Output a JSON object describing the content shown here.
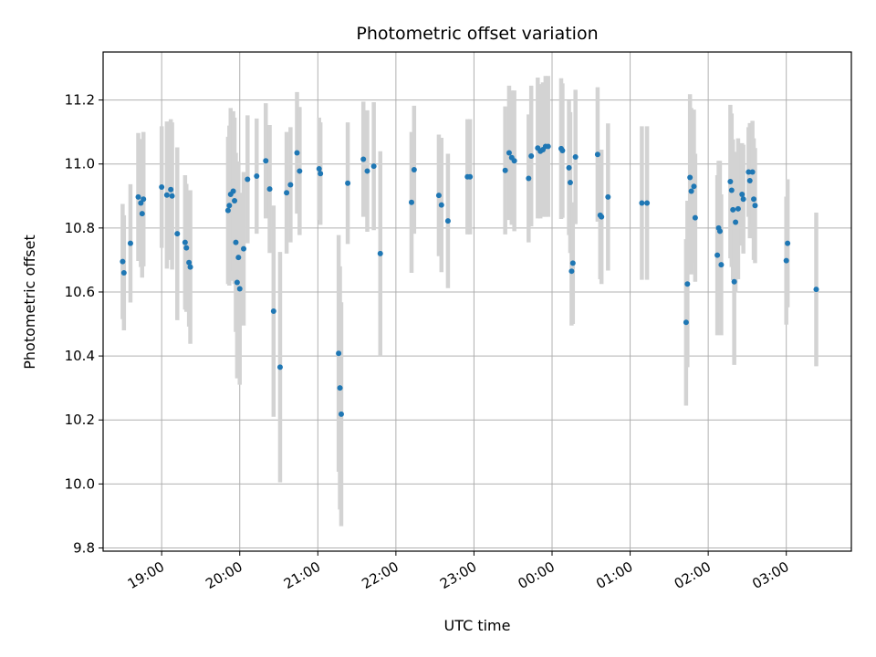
{
  "chart_data": {
    "type": "scatter",
    "title": "Photometric offset variation",
    "xlabel": "UTC time",
    "ylabel": "Photometric offset",
    "grid": true,
    "x_unit": "hours UTC",
    "xlim": [
      "18:15",
      "03:50"
    ],
    "ylim": [
      9.79,
      11.35
    ],
    "x_ticks": [
      "19:00",
      "20:00",
      "21:00",
      "22:00",
      "23:00",
      "00:00",
      "01:00",
      "02:00",
      "03:00"
    ],
    "y_ticks": [
      "9.8",
      "10.0",
      "10.2",
      "10.4",
      "10.6",
      "10.8",
      "11.0",
      "11.2"
    ],
    "colors": {
      "marker": "#1f77b4",
      "errorbar": "#d3d3d3",
      "grid": "#b0b0b0"
    },
    "points": [
      {
        "x": "18:30",
        "y": 10.695,
        "err": 0.18
      },
      {
        "x": "18:31",
        "y": 10.66,
        "err": 0.18
      },
      {
        "x": "18:36",
        "y": 10.752,
        "err": 0.185
      },
      {
        "x": "18:42",
        "y": 10.897,
        "err": 0.2
      },
      {
        "x": "18:44",
        "y": 10.878,
        "err": 0.2
      },
      {
        "x": "18:45",
        "y": 10.845,
        "err": 0.2
      },
      {
        "x": "18:46",
        "y": 10.89,
        "err": 0.21
      },
      {
        "x": "19:00",
        "y": 10.928,
        "err": 0.19
      },
      {
        "x": "19:04",
        "y": 10.903,
        "err": 0.23
      },
      {
        "x": "19:07",
        "y": 10.92,
        "err": 0.22
      },
      {
        "x": "19:08",
        "y": 10.9,
        "err": 0.23
      },
      {
        "x": "19:12",
        "y": 10.782,
        "err": 0.27
      },
      {
        "x": "19:18",
        "y": 10.755,
        "err": 0.21
      },
      {
        "x": "19:19",
        "y": 10.738,
        "err": 0.2
      },
      {
        "x": "19:21",
        "y": 10.692,
        "err": 0.2
      },
      {
        "x": "19:22",
        "y": 10.678,
        "err": 0.24
      },
      {
        "x": "19:51",
        "y": 10.855,
        "err": 0.23
      },
      {
        "x": "19:52",
        "y": 10.87,
        "err": 0.25
      },
      {
        "x": "19:53",
        "y": 10.905,
        "err": 0.27
      },
      {
        "x": "19:55",
        "y": 10.915,
        "err": 0.25
      },
      {
        "x": "19:56",
        "y": 10.885,
        "err": 0.26
      },
      {
        "x": "19:57",
        "y": 10.755,
        "err": 0.28
      },
      {
        "x": "19:58",
        "y": 10.63,
        "err": 0.3
      },
      {
        "x": "19:59",
        "y": 10.708,
        "err": 0.3
      },
      {
        "x": "20:00",
        "y": 10.61,
        "err": 0.3
      },
      {
        "x": "20:03",
        "y": 10.735,
        "err": 0.24
      },
      {
        "x": "20:06",
        "y": 10.952,
        "err": 0.2
      },
      {
        "x": "20:13",
        "y": 10.962,
        "err": 0.18
      },
      {
        "x": "20:20",
        "y": 11.01,
        "err": 0.18
      },
      {
        "x": "20:23",
        "y": 10.922,
        "err": 0.2
      },
      {
        "x": "20:26",
        "y": 10.54,
        "err": 0.33
      },
      {
        "x": "20:31",
        "y": 10.365,
        "err": 0.36
      },
      {
        "x": "20:36",
        "y": 10.91,
        "err": 0.19
      },
      {
        "x": "20:39",
        "y": 10.935,
        "err": 0.18
      },
      {
        "x": "20:44",
        "y": 11.035,
        "err": 0.19
      },
      {
        "x": "20:46",
        "y": 10.978,
        "err": 0.2
      },
      {
        "x": "21:01",
        "y": 10.985,
        "err": 0.16
      },
      {
        "x": "21:02",
        "y": 10.97,
        "err": 0.16
      },
      {
        "x": "21:16",
        "y": 10.408,
        "err": 0.37
      },
      {
        "x": "21:17",
        "y": 10.3,
        "err": 0.38
      },
      {
        "x": "21:18",
        "y": 10.218,
        "err": 0.35
      },
      {
        "x": "21:23",
        "y": 10.94,
        "err": 0.19
      },
      {
        "x": "21:35",
        "y": 11.015,
        "err": 0.18
      },
      {
        "x": "21:38",
        "y": 10.978,
        "err": 0.19
      },
      {
        "x": "21:43",
        "y": 10.993,
        "err": 0.2
      },
      {
        "x": "21:48",
        "y": 10.72,
        "err": 0.32
      },
      {
        "x": "22:12",
        "y": 10.88,
        "err": 0.22
      },
      {
        "x": "22:14",
        "y": 10.982,
        "err": 0.2
      },
      {
        "x": "22:33",
        "y": 10.902,
        "err": 0.19
      },
      {
        "x": "22:35",
        "y": 10.872,
        "err": 0.21
      },
      {
        "x": "22:40",
        "y": 10.822,
        "err": 0.21
      },
      {
        "x": "22:55",
        "y": 10.96,
        "err": 0.18
      },
      {
        "x": "22:57",
        "y": 10.96,
        "err": 0.18
      },
      {
        "x": "23:24",
        "y": 10.98,
        "err": 0.2
      },
      {
        "x": "23:27",
        "y": 11.035,
        "err": 0.21
      },
      {
        "x": "23:29",
        "y": 11.02,
        "err": 0.21
      },
      {
        "x": "23:31",
        "y": 11.01,
        "err": 0.22
      },
      {
        "x": "23:42",
        "y": 10.955,
        "err": 0.2
      },
      {
        "x": "23:44",
        "y": 11.025,
        "err": 0.22
      },
      {
        "x": "23:49",
        "y": 11.05,
        "err": 0.22
      },
      {
        "x": "23:51",
        "y": 11.04,
        "err": 0.21
      },
      {
        "x": "23:53",
        "y": 11.045,
        "err": 0.21
      },
      {
        "x": "23:55",
        "y": 11.055,
        "err": 0.22
      },
      {
        "x": "23:57",
        "y": 11.055,
        "err": 0.22
      },
      {
        "x": "00:07",
        "y": 11.048,
        "err": 0.22
      },
      {
        "x": "00:08",
        "y": 11.042,
        "err": 0.21
      },
      {
        "x": "00:13",
        "y": 10.988,
        "err": 0.21
      },
      {
        "x": "00:14",
        "y": 10.942,
        "err": 0.22
      },
      {
        "x": "00:15",
        "y": 10.665,
        "err": 0.17
      },
      {
        "x": "00:16",
        "y": 10.69,
        "err": 0.19
      },
      {
        "x": "00:18",
        "y": 11.022,
        "err": 0.21
      },
      {
        "x": "00:35",
        "y": 11.03,
        "err": 0.21
      },
      {
        "x": "00:37",
        "y": 10.84,
        "err": 0.2
      },
      {
        "x": "00:38",
        "y": 10.835,
        "err": 0.21
      },
      {
        "x": "00:43",
        "y": 10.897,
        "err": 0.23
      },
      {
        "x": "01:09",
        "y": 10.878,
        "err": 0.24
      },
      {
        "x": "01:13",
        "y": 10.878,
        "err": 0.24
      },
      {
        "x": "01:43",
        "y": 10.505,
        "err": 0.26
      },
      {
        "x": "01:44",
        "y": 10.625,
        "err": 0.26
      },
      {
        "x": "01:46",
        "y": 10.958,
        "err": 0.26
      },
      {
        "x": "01:47",
        "y": 10.915,
        "err": 0.26
      },
      {
        "x": "01:49",
        "y": 10.93,
        "err": 0.24
      },
      {
        "x": "01:50",
        "y": 10.832,
        "err": 0.2
      },
      {
        "x": "02:07",
        "y": 10.715,
        "err": 0.25
      },
      {
        "x": "02:08",
        "y": 10.8,
        "err": 0.21
      },
      {
        "x": "02:09",
        "y": 10.79,
        "err": 0.22
      },
      {
        "x": "02:10",
        "y": 10.685,
        "err": 0.22
      },
      {
        "x": "02:17",
        "y": 10.945,
        "err": 0.24
      },
      {
        "x": "02:18",
        "y": 10.918,
        "err": 0.24
      },
      {
        "x": "02:19",
        "y": 10.857,
        "err": 0.22
      },
      {
        "x": "02:20",
        "y": 10.632,
        "err": 0.26
      },
      {
        "x": "02:21",
        "y": 10.818,
        "err": 0.22
      },
      {
        "x": "02:23",
        "y": 10.86,
        "err": 0.22
      },
      {
        "x": "02:26",
        "y": 10.905,
        "err": 0.16
      },
      {
        "x": "02:27",
        "y": 10.89,
        "err": 0.17
      },
      {
        "x": "02:31",
        "y": 10.975,
        "err": 0.14
      },
      {
        "x": "02:32",
        "y": 10.948,
        "err": 0.18
      },
      {
        "x": "02:34",
        "y": 10.975,
        "err": 0.16
      },
      {
        "x": "02:35",
        "y": 10.89,
        "err": 0.19
      },
      {
        "x": "02:36",
        "y": 10.87,
        "err": 0.18
      },
      {
        "x": "03:00",
        "y": 10.698,
        "err": 0.2
      },
      {
        "x": "03:01",
        "y": 10.752,
        "err": 0.2
      },
      {
        "x": "03:23",
        "y": 10.608,
        "err": 0.24
      }
    ]
  }
}
